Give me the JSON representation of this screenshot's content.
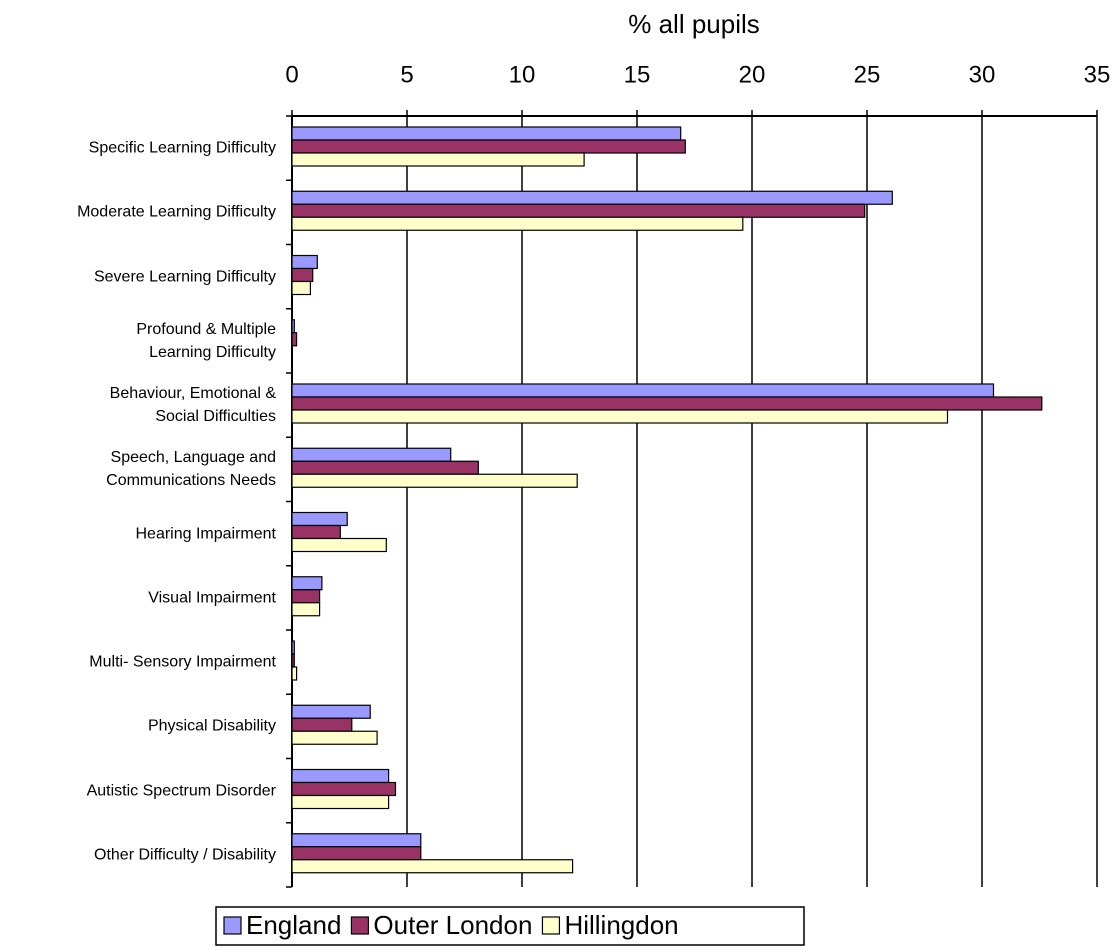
{
  "chart_data": {
    "type": "hbar",
    "title": "% all pupils",
    "categories": [
      "Specific Learning Difficulty",
      "Moderate Learning Difficulty",
      "Severe Learning Difficulty",
      "Profound & Multiple\nLearning Difficulty",
      "Behaviour, Emotional &\nSocial Difficulties",
      "Speech, Language and\nCommunications Needs",
      "Hearing Impairment",
      "Visual Impairment",
      "Multi- Sensory Impairment",
      "Physical Disability",
      "Autistic Spectrum Disorder",
      "Other Difficulty / Disability"
    ],
    "series": [
      {
        "name": "England",
        "color": "#9999ff",
        "values": [
          16.9,
          26.1,
          1.1,
          0.1,
          30.5,
          6.9,
          2.4,
          1.3,
          0.1,
          3.4,
          4.2,
          5.6
        ]
      },
      {
        "name": "Outer London",
        "color": "#993366",
        "values": [
          17.1,
          24.9,
          0.9,
          0.2,
          32.6,
          8.1,
          2.1,
          1.2,
          0.1,
          2.6,
          4.5,
          5.6
        ]
      },
      {
        "name": "Hillingdon",
        "color": "#ffffcc",
        "values": [
          12.7,
          19.6,
          0.8,
          0,
          28.5,
          12.4,
          4.1,
          1.2,
          0.2,
          3.7,
          4.2,
          12.2
        ]
      }
    ],
    "xlim": [
      0,
      35
    ],
    "xticks": [
      0,
      5,
      10,
      15,
      20,
      25,
      30,
      35
    ],
    "grid": true,
    "legend": "bottom"
  }
}
